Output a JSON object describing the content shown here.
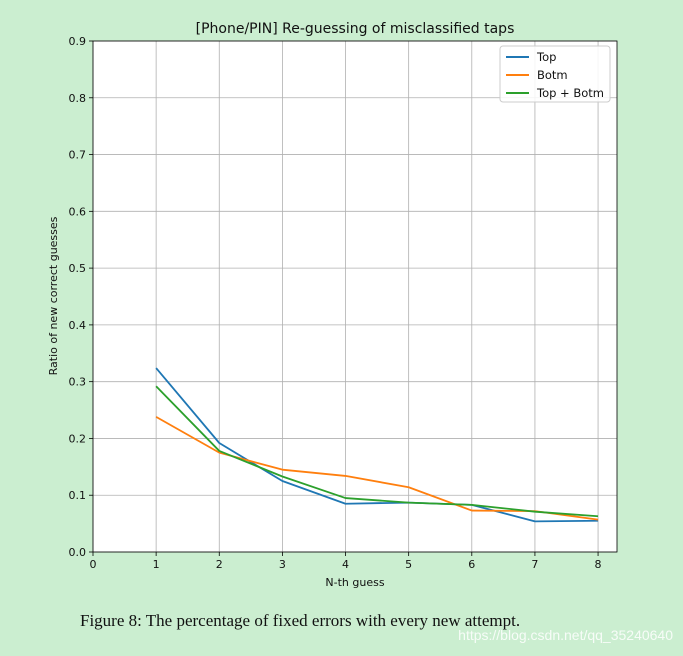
{
  "chart_data": {
    "type": "line",
    "title": "[Phone/PIN] Re-guessing of misclassified taps",
    "xlabel": "N-th guess",
    "ylabel": "Ratio of new correct guesses",
    "xlim": [
      0,
      8.3
    ],
    "ylim": [
      0,
      0.9
    ],
    "x": [
      1,
      2,
      3,
      4,
      5,
      6,
      7,
      8
    ],
    "xticks": [
      "0",
      "1",
      "2",
      "3",
      "4",
      "5",
      "6",
      "7",
      "8"
    ],
    "yticks": [
      "0.0",
      "0.1",
      "0.2",
      "0.3",
      "0.4",
      "0.5",
      "0.6",
      "0.7",
      "0.8",
      "0.9"
    ],
    "grid": true,
    "legend_position": "top-right",
    "series": [
      {
        "name": "Top",
        "color": "#1f77b4",
        "values": [
          0.324,
          0.192,
          0.125,
          0.085,
          0.087,
          0.083,
          0.054,
          0.055
        ]
      },
      {
        "name": "Botm",
        "color": "#ff7f0e",
        "values": [
          0.238,
          0.175,
          0.145,
          0.134,
          0.114,
          0.073,
          0.072,
          0.057
        ]
      },
      {
        "name": "Top + Botm",
        "color": "#2ca02c",
        "values": [
          0.292,
          0.178,
          0.133,
          0.095,
          0.087,
          0.083,
          0.071,
          0.063
        ]
      }
    ]
  },
  "caption": "Figure 8: The percentage of fixed errors with every new attempt.",
  "watermark": "https://blog.csdn.net/qq_35240640"
}
